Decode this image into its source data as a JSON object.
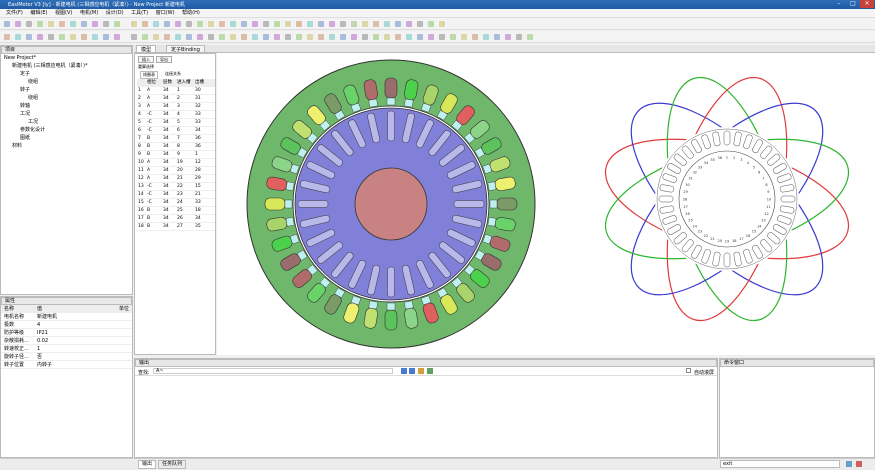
{
  "window": {
    "title": "EasiMotor V3 [ly] - 新建电机 (三相感应电机（紧凑）) - New Project 新建电机",
    "min": "–",
    "max": "□",
    "close": "✕"
  },
  "menu": [
    "文件(F)",
    "编辑(E)",
    "视图(V)",
    "电机(M)",
    "设计(D)",
    "工具(T)",
    "窗口(W)",
    "帮助(H)"
  ],
  "project": {
    "header": "项目",
    "items": [
      {
        "label": "New Project*",
        "level": 0
      },
      {
        "label": "新建电机 (三相感应电机（紧凑）)*",
        "level": 1
      },
      {
        "label": "定子",
        "level": 2
      },
      {
        "label": "绕组",
        "level": 3
      },
      {
        "label": "转子",
        "level": 2
      },
      {
        "label": "绕组",
        "level": 3
      },
      {
        "label": "转轴",
        "level": 2
      },
      {
        "label": "工况",
        "level": 2
      },
      {
        "label": "工况",
        "level": 3
      },
      {
        "label": "参数化设计",
        "level": 2
      },
      {
        "label": "图纸",
        "level": 2
      },
      {
        "label": "材料",
        "level": 1
      }
    ]
  },
  "properties": {
    "header": "属性",
    "col_name": "名称",
    "col_value": "值",
    "col_unit": "单位",
    "rows": [
      {
        "name": "电机名称",
        "value": "新建电机"
      },
      {
        "name": "极数",
        "value": "4"
      },
      {
        "name": "防护等级",
        "value": "IP21"
      },
      {
        "name": "杂散损耗...",
        "value": "0.02"
      },
      {
        "name": "转速校正...",
        "value": "1"
      },
      {
        "name": "旋转子径...",
        "value": "否"
      },
      {
        "name": "转子位置",
        "value": "内转子"
      }
    ]
  },
  "tabs": {
    "model": "模型",
    "stator": "定子Binding"
  },
  "winding_table": {
    "btn_insert": "插入",
    "btn_export": "导出",
    "label_select": "重算选择",
    "sub_tab1": "线圈表",
    "sub_tab2": "连接关系",
    "headers": [
      "",
      "相位",
      "层数",
      "进入槽",
      "出槽"
    ],
    "rows": [
      [
        "1",
        "A",
        "34",
        "1",
        "30"
      ],
      [
        "2",
        "A",
        "34",
        "2",
        "31"
      ],
      [
        "3",
        "A",
        "34",
        "3",
        "32"
      ],
      [
        "4",
        "-C",
        "34",
        "4",
        "33"
      ],
      [
        "5",
        "-C",
        "34",
        "5",
        "33"
      ],
      [
        "6",
        "-C",
        "34",
        "6",
        "34"
      ],
      [
        "7",
        "B",
        "34",
        "7",
        "36"
      ],
      [
        "8",
        "B",
        "34",
        "8",
        "36"
      ],
      [
        "9",
        "B",
        "34",
        "9",
        "1"
      ],
      [
        "10",
        "A",
        "34",
        "19",
        "12"
      ],
      [
        "11",
        "A",
        "34",
        "20",
        "28"
      ],
      [
        "12",
        "A",
        "34",
        "21",
        "29"
      ],
      [
        "13",
        "-C",
        "34",
        "22",
        "15"
      ],
      [
        "14",
        "-C",
        "34",
        "23",
        "21"
      ],
      [
        "15",
        "-C",
        "34",
        "24",
        "33"
      ],
      [
        "16",
        "B",
        "34",
        "25",
        "18"
      ],
      [
        "17",
        "B",
        "34",
        "26",
        "34"
      ],
      [
        "18",
        "B",
        "34",
        "27",
        "35"
      ]
    ]
  },
  "output": {
    "header": "输出",
    "filter_label": "查找:",
    "filter_value": "A~",
    "auto_scroll": "自动滚屏",
    "tab_output": "输出",
    "tab_errors": "任务队列"
  },
  "command": {
    "header": "命令窗口",
    "input": "exit"
  },
  "colors": {
    "frame": "#6fb76a",
    "rotor": "#8080d8",
    "shaft": "#c98282",
    "phaseA": "#e03a3a",
    "phaseB": "#3a3ad0",
    "phaseC": "#2fb52f"
  },
  "diagram": {
    "slots": 36,
    "rotor_bars": 28
  }
}
